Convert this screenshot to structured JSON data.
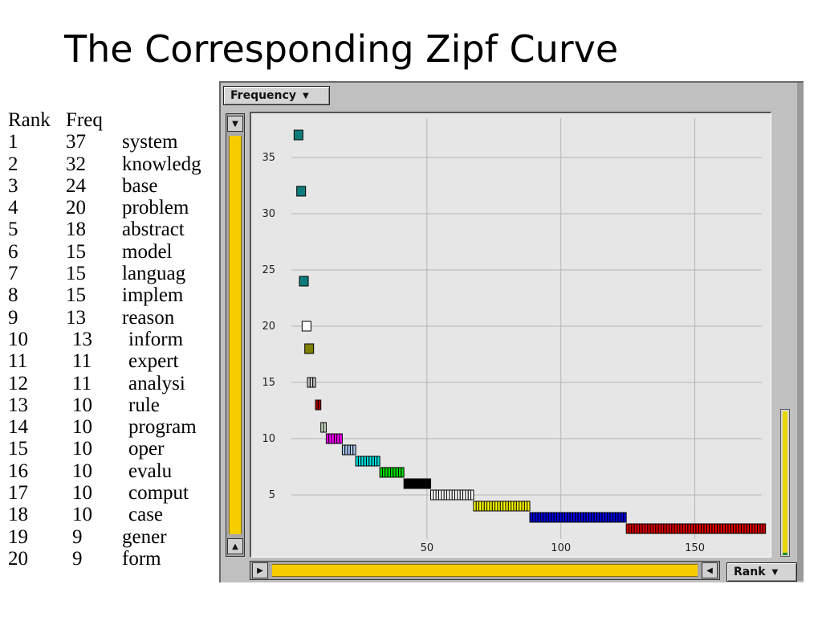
{
  "slide": {
    "title": "The Corresponding Zipf Curve"
  },
  "table": {
    "header_rank": "Rank",
    "header_freq": "Freq",
    "rows": [
      {
        "rank": "1",
        "freq": "37",
        "term": "system"
      },
      {
        "rank": "2",
        "freq": "32",
        "term": "knowledg"
      },
      {
        "rank": "3",
        "freq": "24",
        "term": "base"
      },
      {
        "rank": "4",
        "freq": "20",
        "term": "problem"
      },
      {
        "rank": "5",
        "freq": "18",
        "term": "abstract"
      },
      {
        "rank": "6",
        "freq": "15",
        "term": "model"
      },
      {
        "rank": "7",
        "freq": "15",
        "term": "languag"
      },
      {
        "rank": "8",
        "freq": "15",
        "term": "implem"
      },
      {
        "rank": "9",
        "freq": "13",
        "term": "reason"
      },
      {
        "rank": "10",
        "freq": "13",
        "term": "inform"
      },
      {
        "rank": "11",
        "freq": "11",
        "term": "expert"
      },
      {
        "rank": "12",
        "freq": "11",
        "term": "analysi"
      },
      {
        "rank": "13",
        "freq": "10",
        "term": "rule"
      },
      {
        "rank": "14",
        "freq": "10",
        "term": "program"
      },
      {
        "rank": "15",
        "freq": "10",
        "term": "oper"
      },
      {
        "rank": "16",
        "freq": "10",
        "term": "evalu"
      },
      {
        "rank": "17",
        "freq": "10",
        "term": "comput"
      },
      {
        "rank": "18",
        "freq": "10",
        "term": "case"
      },
      {
        "rank": "19",
        "freq": "9",
        "term": "gener"
      },
      {
        "rank": "20",
        "freq": "9",
        "term": "form"
      }
    ]
  },
  "controls": {
    "y_dropdown_label": "Frequency",
    "x_dropdown_label": "Rank"
  },
  "chart_data": {
    "type": "scatter",
    "title": "",
    "xlabel": "Rank",
    "ylabel": "Frequency",
    "xlim": [
      0,
      175
    ],
    "ylim": [
      0,
      38.5
    ],
    "x_ticks": [
      50,
      100,
      150
    ],
    "y_ticks": [
      5,
      10,
      15,
      20,
      25,
      30,
      35
    ],
    "grid": true,
    "marker": "square",
    "groups": [
      {
        "freq": 37,
        "rank_from": 1,
        "rank_to": 1,
        "color": "#0e7b7b"
      },
      {
        "freq": 32,
        "rank_from": 2,
        "rank_to": 2,
        "color": "#0e7b7b"
      },
      {
        "freq": 24,
        "rank_from": 3,
        "rank_to": 3,
        "color": "#0e7b7b"
      },
      {
        "freq": 20,
        "rank_from": 4,
        "rank_to": 4,
        "color": "#ffffff"
      },
      {
        "freq": 18,
        "rank_from": 5,
        "rank_to": 5,
        "color": "#7f7f00"
      },
      {
        "freq": 15,
        "rank_from": 6,
        "rank_to": 8,
        "color": "#c8c8c8"
      },
      {
        "freq": 13,
        "rank_from": 9,
        "rank_to": 10,
        "color": "#a80000"
      },
      {
        "freq": 11,
        "rank_from": 11,
        "rank_to": 12,
        "color": "#c8dcc0"
      },
      {
        "freq": 10,
        "rank_from": 13,
        "rank_to": 18,
        "color": "#ff00ff"
      },
      {
        "freq": 9,
        "rank_from": 19,
        "rank_to": 23,
        "color": "#a8c8f0"
      },
      {
        "freq": 8,
        "rank_from": 24,
        "rank_to": 32,
        "color": "#00e0e0"
      },
      {
        "freq": 7,
        "rank_from": 33,
        "rank_to": 41,
        "color": "#00e000"
      },
      {
        "freq": 6,
        "rank_from": 42,
        "rank_to": 51,
        "color": "#000000"
      },
      {
        "freq": 5,
        "rank_from": 52,
        "rank_to": 67,
        "color": "#ffffff"
      },
      {
        "freq": 4,
        "rank_from": 68,
        "rank_to": 88,
        "color": "#ffff00"
      },
      {
        "freq": 3,
        "rank_from": 89,
        "rank_to": 124,
        "color": "#0000e0"
      },
      {
        "freq": 2,
        "rank_from": 125,
        "rank_to": 189,
        "color": "#e00000"
      }
    ]
  }
}
